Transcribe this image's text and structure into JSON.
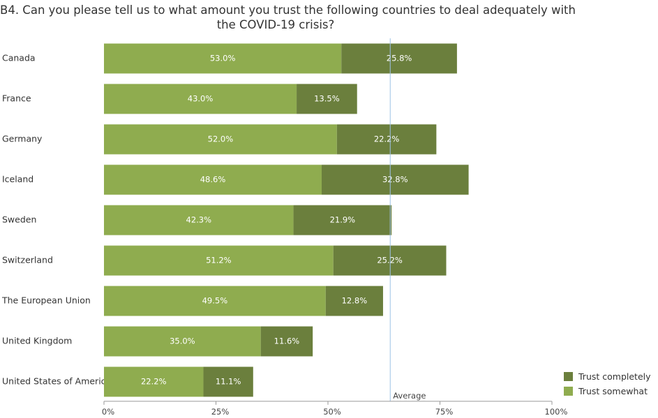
{
  "title_lines": [
    "B4. Can you please tell us to what amount you trust the following countries to deal adequately with",
    "the COVID-19 crisis?"
  ],
  "chart_data": {
    "type": "bar",
    "orientation": "horizontal",
    "stacked": true,
    "categories": [
      "Canada",
      "France",
      "Germany",
      "Iceland",
      "Sweden",
      "Switzerland",
      "The European Union",
      "United Kingdom",
      "United States of America"
    ],
    "series": [
      {
        "name": "Trust somewhat",
        "color": "#8fac4f",
        "values": [
          53.0,
          43.0,
          52.0,
          48.6,
          42.3,
          51.2,
          49.5,
          35.0,
          22.2
        ],
        "labels": [
          "53.0%",
          "43.0%",
          "52.0%",
          "48.6%",
          "42.3%",
          "51.2%",
          "49.5%",
          "35.0%",
          "22.2%"
        ]
      },
      {
        "name": "Trust completely",
        "color": "#6b7f3d",
        "values": [
          25.8,
          13.5,
          22.2,
          32.8,
          21.9,
          25.2,
          12.8,
          11.6,
          11.1
        ],
        "labels": [
          "25.8%",
          "13.5%",
          "22.2%",
          "32.8%",
          "21.9%",
          "25.2%",
          "12.8%",
          "11.6%",
          "11.1%"
        ]
      }
    ],
    "xlim": [
      0,
      100
    ],
    "xticks": [
      0,
      25,
      50,
      75,
      100
    ],
    "xtick_labels": [
      "0%",
      "25%",
      "50%",
      "75%",
      "100%"
    ],
    "reference_line": {
      "label": "Average",
      "value": 63.9,
      "color": "#9dc3e6"
    },
    "legend": {
      "position": "bottom-right",
      "order": [
        "Trust completely",
        "Trust somewhat"
      ]
    }
  }
}
